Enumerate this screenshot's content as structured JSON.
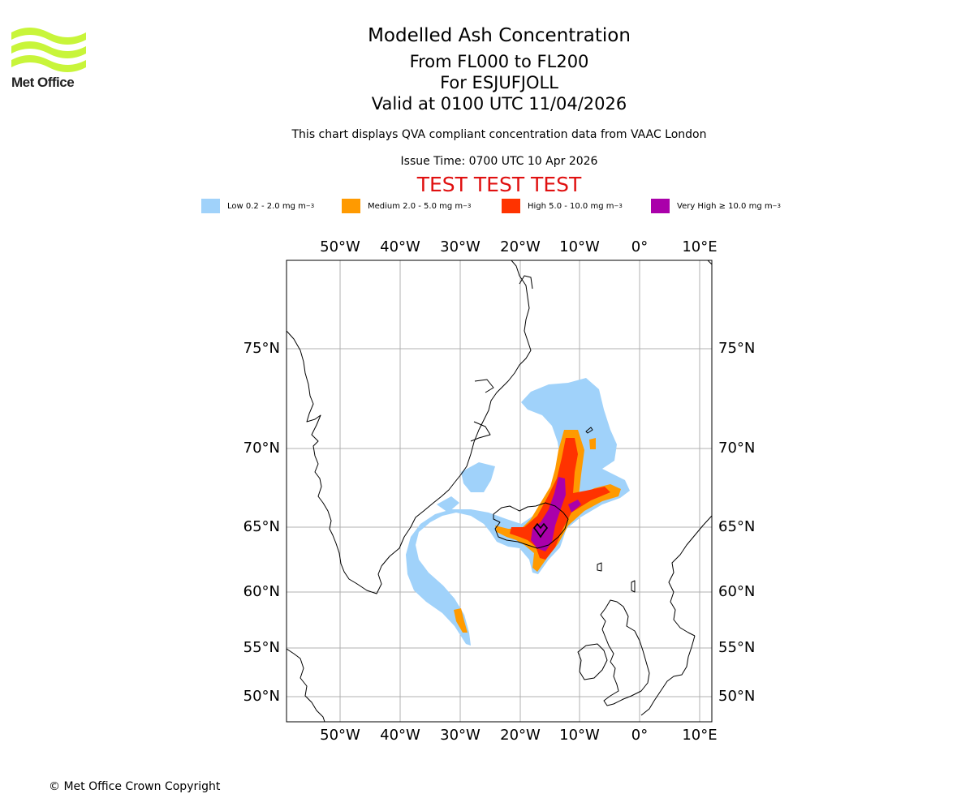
{
  "logo": {
    "text": "Met Office",
    "color": "#c8f53a"
  },
  "title": {
    "line1": "Modelled Ash Concentration",
    "line2": "From FL000 to FL200",
    "line3": "For ESJUFJOLL",
    "line4": "Valid at 0100 UTC 11/04/2026"
  },
  "note": "This chart displays QVA compliant concentration data from VAAC London",
  "issue_time": "Issue Time: 0700 UTC 10 Apr 2026",
  "test_banner": "TEST TEST TEST",
  "legend": [
    {
      "label": "Low 0.2 - 2.0 mg m",
      "unit_exp": "−3",
      "color": "#a0d2fa"
    },
    {
      "label": "Medium 2.0 - 5.0 mg m",
      "unit_exp": "−3",
      "color": "#ff9a00"
    },
    {
      "label": "High 5.0 - 10.0 mg m",
      "unit_exp": "−3",
      "color": "#ff3300"
    },
    {
      "label": "Very High  ≥  10.0 mg m",
      "unit_exp": "−3",
      "color": "#aa00aa"
    }
  ],
  "longitude_labels": [
    "50°W",
    "40°W",
    "30°W",
    "20°W",
    "10°W",
    "0°",
    "10°E"
  ],
  "latitude_labels": [
    "75°N",
    "70°N",
    "65°N",
    "60°N",
    "55°N",
    "50°N"
  ],
  "copyright": "© Met Office Crown Copyright"
}
